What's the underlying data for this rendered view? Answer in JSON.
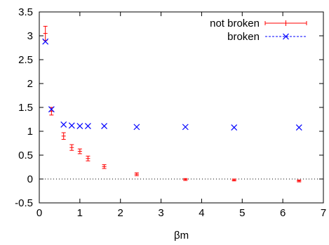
{
  "chart_data": {
    "type": "scatter",
    "title": "",
    "xlabel": "βm",
    "ylabel": "",
    "xlim": [
      0,
      7
    ],
    "ylim": [
      -0.5,
      3.5
    ],
    "x_ticks": [
      "0",
      "1",
      "2",
      "3",
      "4",
      "5",
      "6",
      "7"
    ],
    "y_ticks": [
      "-0.5",
      "0",
      "0.5",
      "1",
      "1.5",
      "2",
      "2.5",
      "3",
      "3.5"
    ],
    "x_tick_values": [
      0,
      1,
      2,
      3,
      4,
      5,
      6,
      7
    ],
    "y_tick_values": [
      -0.5,
      0,
      0.5,
      1,
      1.5,
      2,
      2.5,
      3,
      3.5
    ],
    "grid": false,
    "reference_line": {
      "y": 0,
      "style": "dotted"
    },
    "legend_position": "top-right",
    "series": [
      {
        "name": "not broken",
        "color": "#ff0000",
        "marker": "errorbar-plus",
        "points": [
          {
            "x": 0.15,
            "y": 3.05,
            "err": 0.15
          },
          {
            "x": 0.3,
            "y": 1.42,
            "err": 0.08
          },
          {
            "x": 0.6,
            "y": 0.9,
            "err": 0.07
          },
          {
            "x": 0.8,
            "y": 0.66,
            "err": 0.06
          },
          {
            "x": 1.0,
            "y": 0.58,
            "err": 0.05
          },
          {
            "x": 1.2,
            "y": 0.43,
            "err": 0.05
          },
          {
            "x": 1.6,
            "y": 0.26,
            "err": 0.04
          },
          {
            "x": 2.4,
            "y": 0.1,
            "err": 0.03
          },
          {
            "x": 3.6,
            "y": -0.01,
            "err": 0.02
          },
          {
            "x": 4.8,
            "y": -0.02,
            "err": 0.02
          },
          {
            "x": 6.4,
            "y": -0.04,
            "err": 0.02
          }
        ]
      },
      {
        "name": "broken",
        "color": "#0000ff",
        "marker": "x",
        "points": [
          {
            "x": 0.15,
            "y": 2.88
          },
          {
            "x": 0.3,
            "y": 1.46
          },
          {
            "x": 0.6,
            "y": 1.14
          },
          {
            "x": 0.8,
            "y": 1.12
          },
          {
            "x": 1.0,
            "y": 1.11
          },
          {
            "x": 1.2,
            "y": 1.11
          },
          {
            "x": 1.6,
            "y": 1.11
          },
          {
            "x": 2.4,
            "y": 1.09
          },
          {
            "x": 3.6,
            "y": 1.09
          },
          {
            "x": 4.8,
            "y": 1.08
          },
          {
            "x": 6.4,
            "y": 1.08
          }
        ]
      }
    ]
  }
}
